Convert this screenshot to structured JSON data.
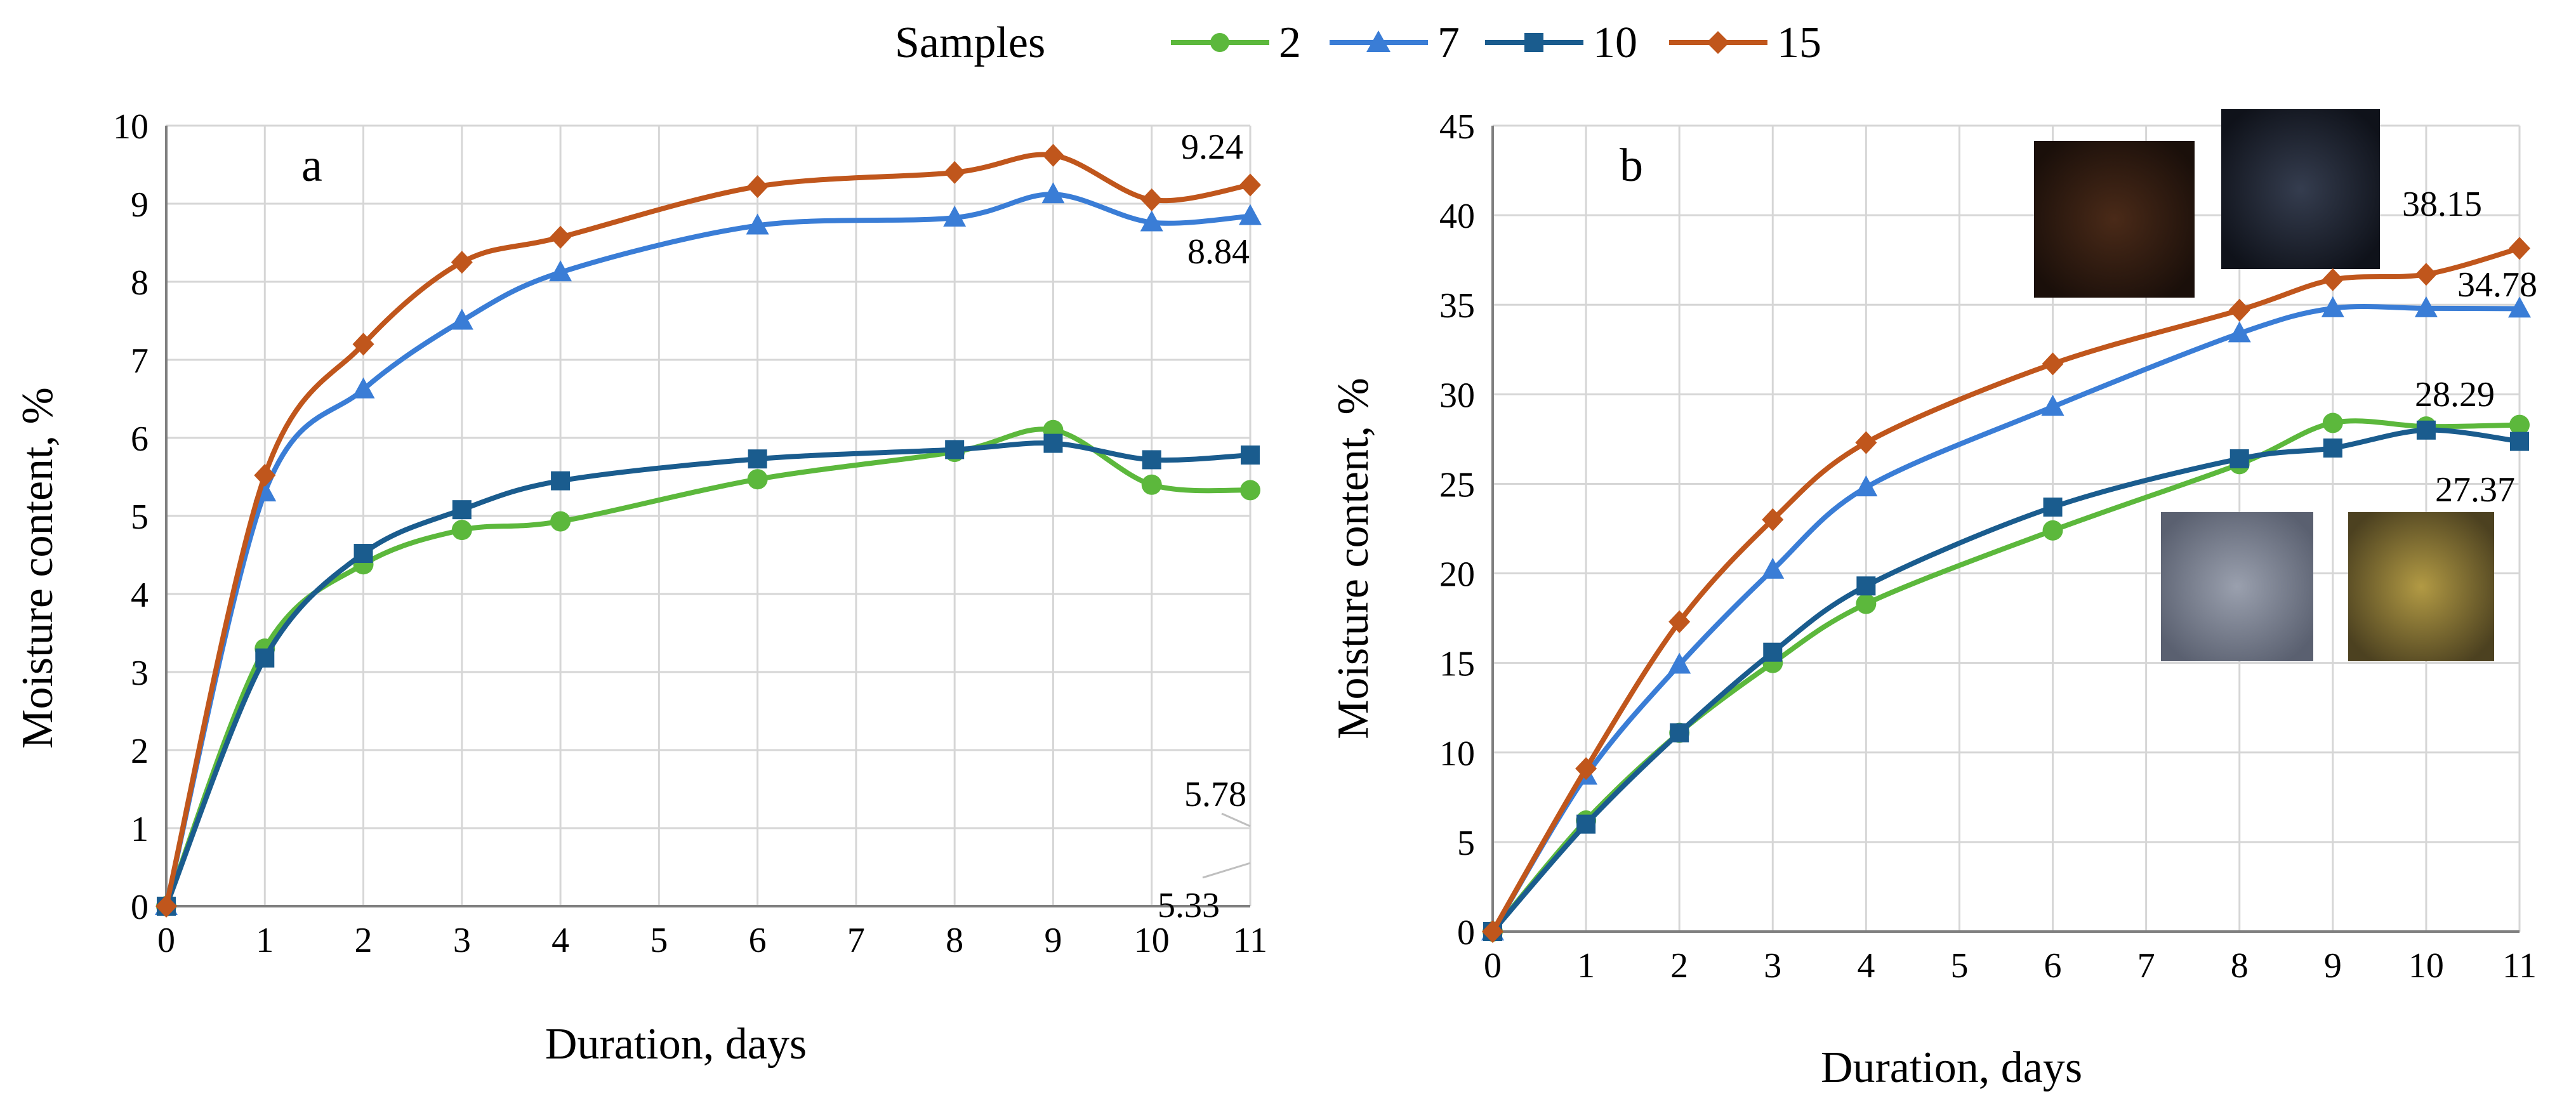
{
  "colors": {
    "s2": "#5cb83c",
    "s7": "#3a7dd6",
    "s10": "#1a5c8e",
    "s15": "#c0561c",
    "grid": "#d6d6d6",
    "axis": "#7f7f7f"
  },
  "legend": {
    "title": "Samples",
    "entries": [
      "2",
      "7",
      "10",
      "15"
    ]
  },
  "chart_data": [
    {
      "type": "line",
      "panel_label": "a",
      "xlabel": "Duration, days",
      "ylabel": "Moisture content, %",
      "xlim": [
        0,
        11
      ],
      "ylim": [
        0,
        10
      ],
      "xticks": [
        0,
        1,
        2,
        3,
        4,
        5,
        6,
        7,
        8,
        9,
        10,
        11
      ],
      "yticks": [
        0,
        1,
        2,
        3,
        4,
        5,
        6,
        7,
        8,
        9,
        10
      ],
      "grid": true,
      "x": [
        0,
        1,
        2,
        3,
        4,
        6,
        8,
        9,
        10,
        11
      ],
      "series": [
        {
          "name": "2",
          "marker": "circle",
          "values": [
            0,
            3.3,
            4.38,
            4.82,
            4.93,
            5.47,
            5.82,
            6.1,
            5.4,
            5.33
          ]
        },
        {
          "name": "7",
          "marker": "triangle",
          "values": [
            0,
            5.3,
            6.62,
            7.5,
            8.12,
            8.72,
            8.82,
            9.12,
            8.76,
            8.84
          ]
        },
        {
          "name": "10",
          "marker": "square",
          "values": [
            0,
            3.18,
            4.52,
            5.08,
            5.45,
            5.73,
            5.85,
            5.93,
            5.72,
            5.78
          ]
        },
        {
          "name": "15",
          "marker": "diamond",
          "values": [
            0,
            5.52,
            7.2,
            8.25,
            8.57,
            9.22,
            9.4,
            9.62,
            9.05,
            9.24
          ]
        }
      ],
      "annotations": [
        {
          "text": "9.24",
          "series": "15"
        },
        {
          "text": "8.84",
          "series": "7"
        },
        {
          "text": "5.78",
          "series": "10"
        },
        {
          "text": "5.33",
          "series": "2"
        }
      ]
    },
    {
      "type": "line",
      "panel_label": "b",
      "xlabel": "Duration,  days",
      "ylabel": "Moisture content, %",
      "xlim": [
        0,
        11
      ],
      "ylim": [
        0,
        45
      ],
      "xticks": [
        0,
        1,
        2,
        3,
        4,
        5,
        6,
        7,
        8,
        9,
        10,
        11
      ],
      "yticks": [
        0,
        5,
        10,
        15,
        20,
        25,
        30,
        35,
        40,
        45
      ],
      "grid": true,
      "x": [
        0,
        1,
        2,
        3,
        4,
        6,
        8,
        9,
        10,
        11
      ],
      "series": [
        {
          "name": "2",
          "marker": "circle",
          "values": [
            0,
            6.2,
            11.1,
            15.0,
            18.3,
            22.4,
            26.1,
            28.4,
            28.2,
            28.29
          ]
        },
        {
          "name": "7",
          "marker": "triangle",
          "values": [
            0,
            8.7,
            14.9,
            20.2,
            24.8,
            29.3,
            33.4,
            34.8,
            34.8,
            34.78
          ]
        },
        {
          "name": "10",
          "marker": "square",
          "values": [
            0,
            6.0,
            11.1,
            15.6,
            19.3,
            23.7,
            26.4,
            27.0,
            28.0,
            27.37
          ]
        },
        {
          "name": "15",
          "marker": "diamond",
          "values": [
            0,
            9.1,
            17.3,
            23.0,
            27.3,
            31.7,
            34.7,
            36.4,
            36.7,
            38.15
          ]
        }
      ],
      "annotations": [
        {
          "text": "38.15",
          "series": "15"
        },
        {
          "text": "34.78",
          "series": "7"
        },
        {
          "text": "28.29",
          "series": "2"
        },
        {
          "text": "27.37",
          "series": "10"
        }
      ]
    }
  ]
}
